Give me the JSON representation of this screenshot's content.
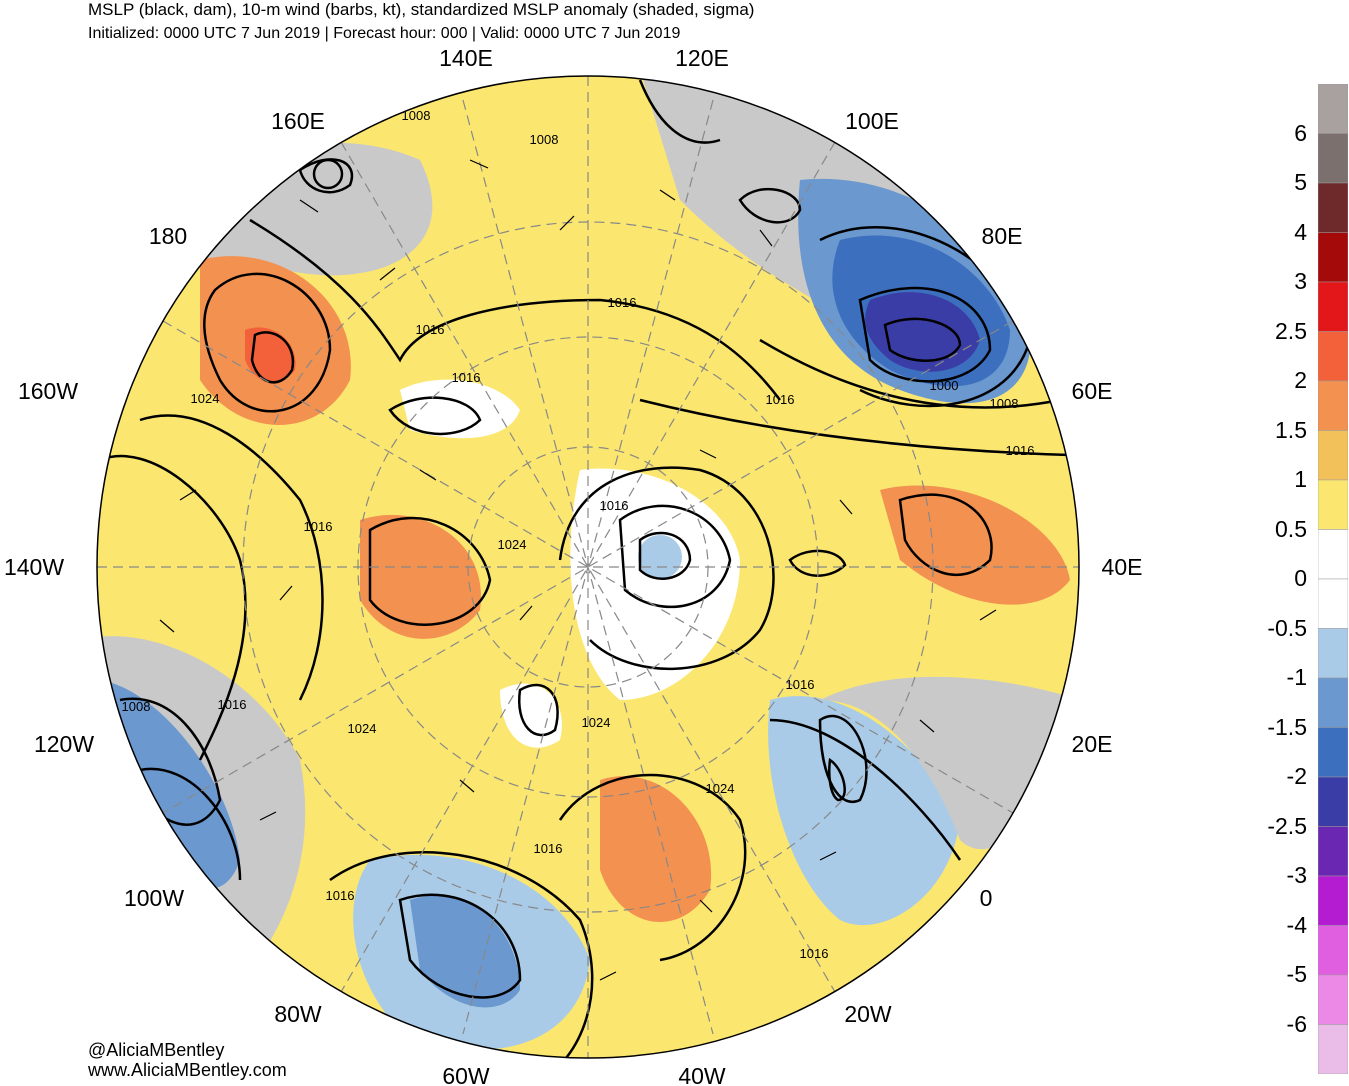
{
  "header": {
    "title": "MSLP (black, dam), 10-m wind (barbs, kt), standardized MSLP anomaly (shaded, sigma)",
    "subtitle": "Initialized: 0000 UTC 7 Jun 2019 | Forecast hour: 000 | Valid: 0000 UTC 7 Jun 2019"
  },
  "map": {
    "longitude_labels": [
      "140E",
      "120E",
      "160E",
      "100E",
      "180",
      "80E",
      "160W",
      "60E",
      "140W",
      "40E",
      "120W",
      "20E",
      "100W",
      "0",
      "80W",
      "20W",
      "60W",
      "40W"
    ],
    "contour_labels": [
      "1008",
      "1008",
      "1016",
      "1016",
      "1016",
      "1016",
      "1024",
      "1016",
      "1016",
      "1024",
      "1000",
      "1008",
      "1016",
      "1008",
      "1016",
      "1024",
      "1024",
      "1016",
      "1024",
      "1016",
      "1016",
      "1016"
    ]
  },
  "colorbar": {
    "labels": [
      "6",
      "5",
      "4",
      "3",
      "2.5",
      "2",
      "1.5",
      "1",
      "0.5",
      "0",
      "-0.5",
      "-1",
      "-1.5",
      "-2",
      "-2.5",
      "-3",
      "-4",
      "-5",
      "-6"
    ],
    "colors": [
      "#a9a0a0",
      "#7b706e",
      "#6e2a2a",
      "#a50a0a",
      "#e3161a",
      "#f3613a",
      "#f39150",
      "#f3c15a",
      "#fbe770",
      "#ffffff",
      "#ffffff",
      "#a9cbe7",
      "#6b98cf",
      "#3d6fbf",
      "#3b3da6",
      "#6a28b2",
      "#b31cd1",
      "#e05fe0",
      "#ec88e6",
      "#e9bde7"
    ]
  },
  "credits": {
    "handle": "@AliciaMBentley",
    "website": "www.AliciaMBentley.com"
  }
}
